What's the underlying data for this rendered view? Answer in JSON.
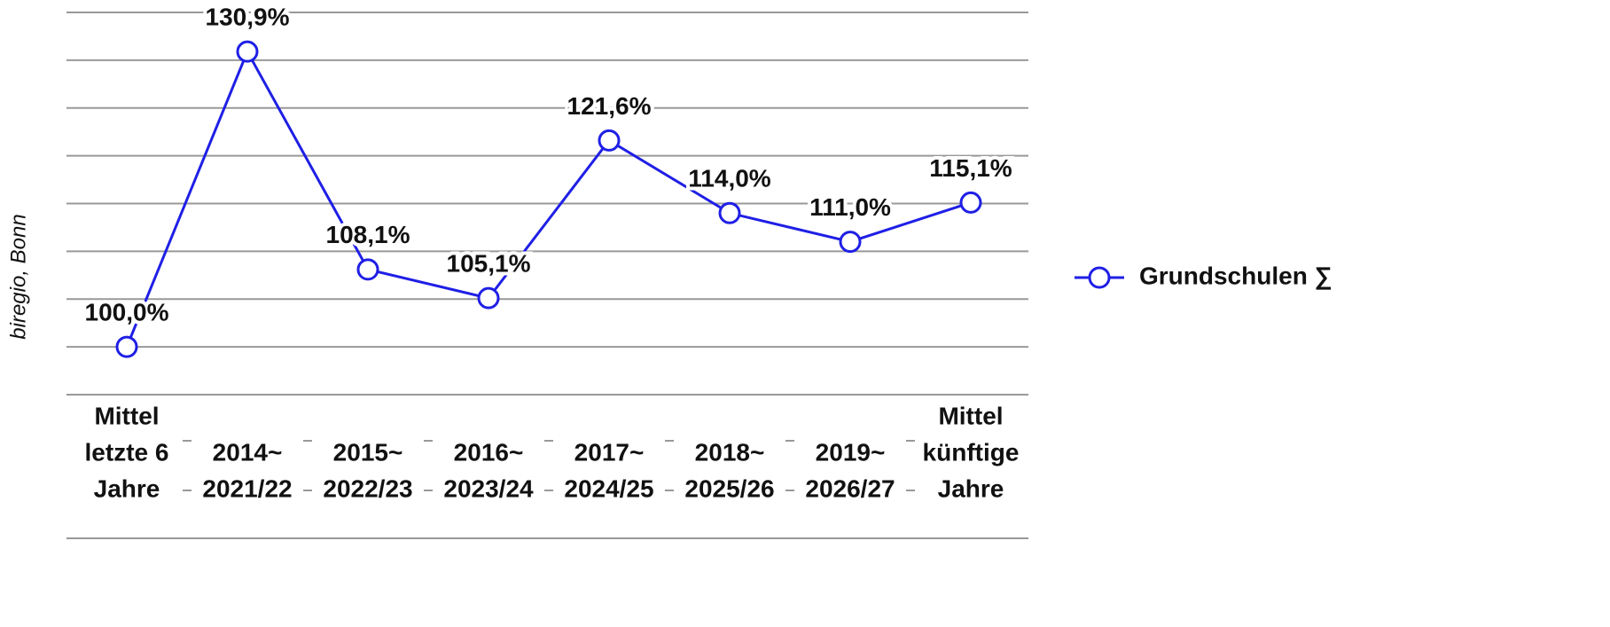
{
  "chart_data": {
    "type": "line",
    "categories": [
      [
        "Mittel",
        "letzte 6",
        "Jahre"
      ],
      [
        "2014~",
        "2021/22"
      ],
      [
        "2015~",
        "2022/23"
      ],
      [
        "2016~",
        "2023/24"
      ],
      [
        "2017~",
        "2024/25"
      ],
      [
        "2018~",
        "2025/26"
      ],
      [
        "2019~",
        "2026/27"
      ],
      [
        "Mittel",
        "künftige",
        "Jahre"
      ]
    ],
    "series": [
      {
        "name": "Grundschulen ∑",
        "color": "#1f1fe6",
        "values": [
          100.0,
          130.9,
          108.1,
          105.1,
          121.6,
          114.0,
          111.0,
          115.1
        ],
        "value_labels": [
          "100,0%",
          "130,9%",
          "108,1%",
          "105,1%",
          "121,6%",
          "114,0%",
          "111,0%",
          "115,1%"
        ]
      }
    ],
    "ylim": [
      95,
      135
    ],
    "yticks": [
      95,
      100,
      105,
      110,
      115,
      120,
      125,
      130,
      135
    ],
    "ytick_labels": false,
    "grid": true,
    "legend": "right",
    "note": "biregio, Bonn"
  }
}
